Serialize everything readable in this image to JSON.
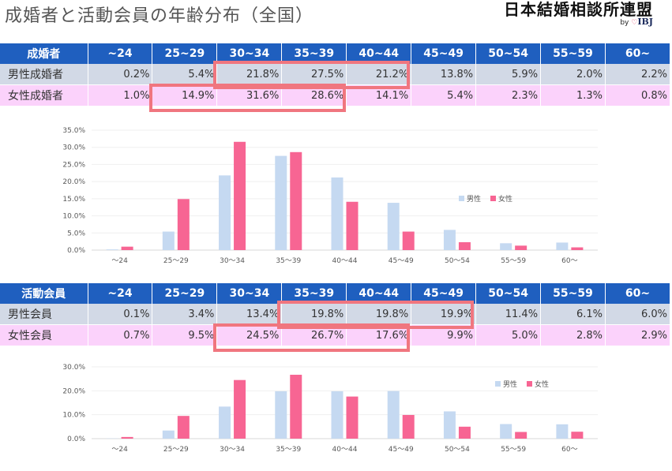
{
  "header": {
    "title": "成婚者と活動会員の年齢分布（全国）",
    "brand_name": "日本結婚相談所連盟",
    "brand_by": "by",
    "brand_logo": "IBJ"
  },
  "colors": {
    "header_blue": "#1f5fbf",
    "male_row": "#d2d9e6",
    "female_row": "#fbd2fb",
    "male_bar": "#c5d9f1",
    "female_bar": "#f76593",
    "highlight": "#f0767f"
  },
  "table1": {
    "header": [
      "成婚者",
      "~24",
      "25~29",
      "30~34",
      "35~39",
      "40~44",
      "45~49",
      "50~54",
      "55~59",
      "60~"
    ],
    "rows": [
      {
        "label": "男性成婚者",
        "cells": [
          "0.2%",
          "5.4%",
          "21.8%",
          "27.5%",
          "21.2%",
          "13.8%",
          "5.9%",
          "2.0%",
          "2.2%"
        ]
      },
      {
        "label": "女性成婚者",
        "cells": [
          "1.0%",
          "14.9%",
          "31.6%",
          "28.6%",
          "14.1%",
          "5.4%",
          "2.3%",
          "1.3%",
          "0.8%"
        ]
      }
    ]
  },
  "table2": {
    "header": [
      "活動会員",
      "~24",
      "25~29",
      "30~34",
      "35~39",
      "40~44",
      "45~49",
      "50~54",
      "55~59",
      "60~"
    ],
    "rows": [
      {
        "label": "男性会員",
        "cells": [
          "0.1%",
          "3.4%",
          "13.4%",
          "19.8%",
          "19.8%",
          "19.9%",
          "11.4%",
          "6.1%",
          "6.0%"
        ]
      },
      {
        "label": "女性会員",
        "cells": [
          "0.7%",
          "9.5%",
          "24.5%",
          "26.7%",
          "17.6%",
          "9.9%",
          "5.0%",
          "2.8%",
          "2.9%"
        ]
      }
    ]
  },
  "chart_data": [
    {
      "type": "bar",
      "categories": [
        "～24",
        "25～29",
        "30～34",
        "35～39",
        "40～44",
        "45～49",
        "50～54",
        "55～59",
        "60～"
      ],
      "series": [
        {
          "name": "男性",
          "values": [
            0.2,
            5.4,
            21.8,
            27.5,
            21.2,
            13.8,
            5.9,
            2.0,
            2.2
          ]
        },
        {
          "name": "女性",
          "values": [
            1.0,
            14.9,
            31.6,
            28.6,
            14.1,
            5.4,
            2.3,
            1.3,
            0.8
          ]
        }
      ],
      "ylim": [
        0,
        35
      ],
      "yticks": [
        "0.0%",
        "5.0%",
        "10.0%",
        "15.0%",
        "20.0%",
        "25.0%",
        "30.0%",
        "35.0%"
      ],
      "legend": "right"
    },
    {
      "type": "bar",
      "categories": [
        "～24",
        "25～29",
        "30～34",
        "35～39",
        "40～44",
        "45～49",
        "50～54",
        "55～59",
        "60～"
      ],
      "series": [
        {
          "name": "男性",
          "values": [
            0.1,
            3.4,
            13.4,
            19.8,
            19.8,
            19.9,
            11.4,
            6.1,
            6.0
          ]
        },
        {
          "name": "女性",
          "values": [
            0.7,
            9.5,
            24.5,
            26.7,
            17.6,
            9.9,
            5.0,
            2.8,
            2.9
          ]
        }
      ],
      "ylim": [
        0,
        30
      ],
      "yticks": [
        "0.0%",
        "10.0%",
        "20.0%",
        "30.0%"
      ],
      "legend": "top-right"
    }
  ]
}
